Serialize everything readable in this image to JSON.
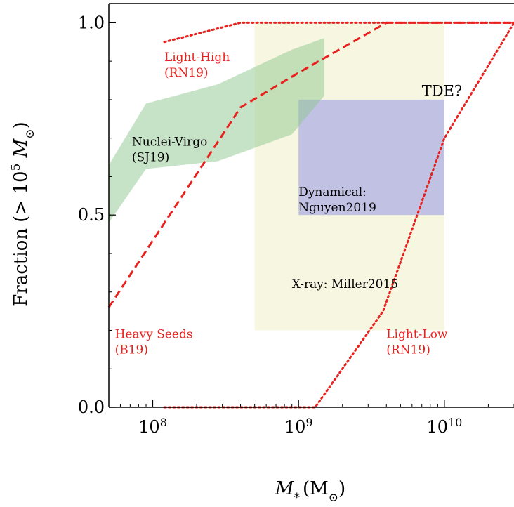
{
  "chart_data": {
    "type": "line",
    "xscale": "log",
    "xlim": [
      50000000,
      30000000000
    ],
    "ylim": [
      0,
      1.05
    ],
    "xlabel_main": "M",
    "xlabel_sub": "*",
    "xlabel_unit_open": "(M",
    "xlabel_unit_sub": "⊙",
    "xlabel_unit_close": ")",
    "ylabel_text": "Fraction (> 10",
    "ylabel_sup": "5",
    "ylabel_m": " M",
    "ylabel_sub": "⊙",
    "ylabel_close": ")",
    "x_ticks": [
      {
        "value": 100000000,
        "base": "10",
        "exp": "8"
      },
      {
        "value": 1000000000,
        "base": "10",
        "exp": "9"
      },
      {
        "value": 10000000000,
        "base": "10",
        "exp": "10"
      }
    ],
    "y_ticks": [
      {
        "value": 0.0,
        "label": "0.0"
      },
      {
        "value": 0.5,
        "label": "0.5"
      },
      {
        "value": 1.0,
        "label": "1.0"
      }
    ],
    "series": [
      {
        "name": "Light-High (RN19)",
        "style": "dotted",
        "color": "#e8211e",
        "x": [
          120000000,
          400000000,
          1000000000,
          10000000000,
          30000000000
        ],
        "y": [
          0.95,
          1.0,
          1.0,
          1.0,
          1.0
        ]
      },
      {
        "name": "Heavy Seeds (B19)",
        "style": "dashed",
        "color": "#e8211e",
        "x": [
          50000000,
          400000000,
          1000000000,
          4000000000,
          10000000000,
          30000000000
        ],
        "y": [
          0.26,
          0.78,
          0.87,
          1.0,
          1.0,
          1.0
        ]
      },
      {
        "name": "Light-Low (RN19)",
        "style": "dotted",
        "color": "#e8211e",
        "x": [
          120000000,
          1300000000,
          3800000000,
          10000000000,
          30000000000
        ],
        "y": [
          0.0,
          0.0,
          0.25,
          0.7,
          1.0
        ]
      }
    ],
    "bands": [
      {
        "name": "Nuclei-Virgo (SJ19)",
        "color": "#90c890",
        "opacity": 0.5,
        "x": [
          50000000,
          90000000,
          280000000,
          900000000,
          1500000000
        ],
        "upper": [
          0.63,
          0.79,
          0.84,
          0.93,
          0.96
        ],
        "lower": [
          0.48,
          0.62,
          0.64,
          0.71,
          0.81
        ]
      }
    ],
    "regions": [
      {
        "name": "X-ray: Miller2015",
        "color": "#f6f5dc",
        "opacity": 0.85,
        "x": [
          500000000,
          10000000000
        ],
        "y": [
          0.2,
          1.0
        ]
      },
      {
        "name": "Dynamical: Nguyen2019",
        "color": "#8c8ce8",
        "opacity": 0.5,
        "x": [
          1000000000,
          10000000000
        ],
        "y": [
          0.5,
          0.8
        ]
      }
    ],
    "annotations": [
      {
        "id": "light-high",
        "lines": [
          "Light-High",
          "(RN19)"
        ],
        "color": "#e8211e",
        "x": 120000000,
        "y": 0.9
      },
      {
        "id": "nuclei-virgo",
        "lines": [
          "Nuclei-Virgo",
          "(SJ19)"
        ],
        "color": "#000000",
        "x": 72000000,
        "y": 0.68
      },
      {
        "id": "tde",
        "lines": [
          "TDE?"
        ],
        "color": "#000000",
        "x": 7000000000,
        "y": 0.81,
        "large": true
      },
      {
        "id": "dynamical",
        "lines": [
          "Dynamical:",
          "Nguyen2019"
        ],
        "color": "#000000",
        "x": 1000000000,
        "y": 0.55
      },
      {
        "id": "xray",
        "lines": [
          "X-ray:  Miller2015"
        ],
        "color": "#000000",
        "x": 900000000,
        "y": 0.31
      },
      {
        "id": "heavy",
        "lines": [
          "Heavy Seeds",
          "(B19)"
        ],
        "color": "#e8211e",
        "x": 55000000,
        "y": 0.18
      },
      {
        "id": "light-low",
        "lines": [
          "Light-Low",
          "(RN19)"
        ],
        "color": "#e8211e",
        "x": 4000000000,
        "y": 0.18
      }
    ]
  }
}
